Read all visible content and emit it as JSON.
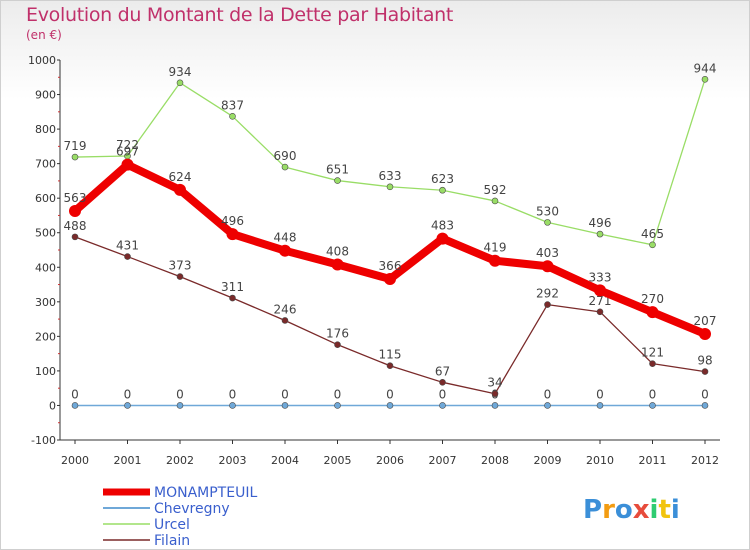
{
  "chart_data": {
    "type": "line",
    "title": "Evolution du Montant de la Dette par Habitant",
    "subtitle": "(en €)",
    "x": [
      "2000",
      "2001",
      "2002",
      "2003",
      "2004",
      "2005",
      "2006",
      "2007",
      "2008",
      "2009",
      "2010",
      "2011",
      "2012"
    ],
    "ylim": [
      -100,
      1000
    ],
    "yticks": [
      "-100",
      "0",
      "100",
      "200",
      "300",
      "400",
      "500",
      "600",
      "700",
      "800",
      "900",
      "1000"
    ],
    "grid": false,
    "legend_position": "bottom-left",
    "series": [
      {
        "name": "MONAMPTEUIL",
        "color": "#ee0000",
        "values": [
          563,
          697,
          624,
          496,
          448,
          408,
          366,
          483,
          419,
          403,
          333,
          270,
          207
        ],
        "labels": [
          "563",
          "697",
          "624",
          "496",
          "448",
          "408",
          "366",
          "483",
          "419",
          "403",
          "333",
          "270",
          "207"
        ]
      },
      {
        "name": "Chevregny",
        "color": "#6fa8d8",
        "values": [
          0,
          0,
          0,
          0,
          0,
          0,
          0,
          0,
          0,
          0,
          0,
          0,
          0
        ],
        "labels": [
          "0",
          "0",
          "0",
          "0",
          "0",
          "0",
          "0",
          "0",
          "0",
          "0",
          "0",
          "0",
          "0"
        ]
      },
      {
        "name": "Urcel",
        "color": "#99dd66",
        "values": [
          719,
          722,
          934,
          837,
          690,
          651,
          633,
          623,
          592,
          530,
          496,
          465,
          944
        ],
        "labels": [
          "719",
          "722",
          "934",
          "837",
          "690",
          "651",
          "633",
          "623",
          "592",
          "530",
          "496",
          "465",
          "944"
        ]
      },
      {
        "name": "Filain",
        "color": "#7a2a2a",
        "values": [
          488,
          431,
          373,
          311,
          246,
          176,
          115,
          67,
          34,
          292,
          271,
          121,
          98
        ],
        "labels": [
          "488",
          "431",
          "373",
          "311",
          "246",
          "176",
          "115",
          "67",
          "34",
          "292",
          "271",
          "121",
          "98"
        ]
      }
    ]
  },
  "logo": {
    "text": "Proxiti"
  }
}
